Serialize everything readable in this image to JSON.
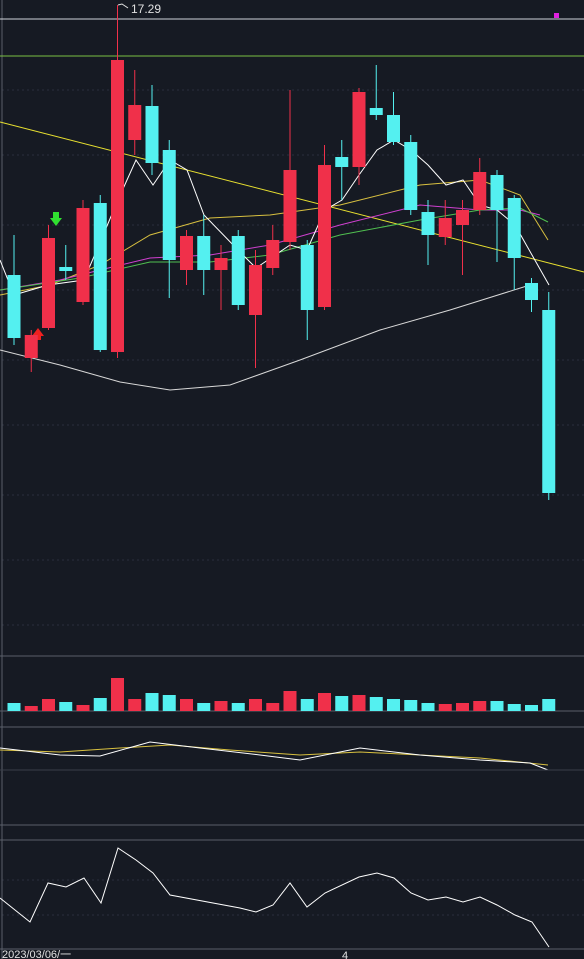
{
  "chart_data": {
    "type": "candlestick",
    "max_label": "17.29",
    "date_label": "2023/03/06/一",
    "axis_label": "4",
    "up_color": "#f0304a",
    "down_color": "#54f0f0",
    "ylim": [
      10.79,
      17.34
    ],
    "open": [
      14.59,
      13.76,
      14.06,
      14.67,
      14.32,
      15.31,
      13.82,
      15.94,
      16.28,
      15.84,
      14.64,
      14.98,
      14.64,
      14.98,
      14.19,
      14.66,
      14.92,
      14.89,
      14.27,
      15.77,
      15.67,
      16.26,
      16.19,
      15.92,
      15.22,
      14.97,
      15.09,
      15.24,
      15.59,
      15.36,
      14.51,
      14.24
    ],
    "high": [
      14.99,
      14.04,
      15.09,
      14.89,
      15.34,
      15.39,
      17.29,
      16.64,
      16.49,
      15.94,
      15.04,
      15.19,
      14.89,
      15.04,
      14.84,
      15.09,
      16.44,
      14.94,
      15.89,
      15.94,
      16.46,
      16.69,
      16.42,
      15.99,
      15.34,
      15.34,
      15.34,
      15.76,
      15.64,
      15.39,
      14.56,
      14.42
    ],
    "low": [
      13.89,
      13.62,
      14.04,
      14.54,
      14.29,
      13.82,
      13.76,
      15.79,
      15.59,
      14.36,
      14.49,
      14.39,
      14.24,
      14.24,
      13.66,
      14.59,
      14.84,
      13.94,
      14.24,
      15.34,
      15.49,
      16.14,
      15.89,
      15.19,
      14.69,
      14.89,
      14.59,
      15.19,
      14.72,
      14.44,
      14.22,
      12.34
    ],
    "close": [
      13.96,
      13.99,
      14.96,
      14.63,
      15.26,
      13.84,
      16.74,
      16.29,
      15.71,
      14.74,
      14.98,
      14.64,
      14.76,
      14.29,
      14.69,
      14.94,
      15.64,
      14.24,
      15.69,
      15.67,
      16.42,
      16.19,
      15.92,
      15.24,
      14.99,
      15.16,
      15.24,
      15.62,
      15.24,
      14.76,
      14.34,
      12.41
    ],
    "volume": {
      "ylim": [
        0,
        40
      ],
      "values": [
        8,
        5,
        12,
        9,
        6,
        13,
        33,
        12,
        18,
        16,
        12,
        8,
        10,
        8,
        12,
        8,
        20,
        12,
        18,
        15,
        16,
        14,
        12,
        11,
        8,
        7,
        8,
        10,
        10,
        7,
        6,
        12
      ]
    }
  }
}
